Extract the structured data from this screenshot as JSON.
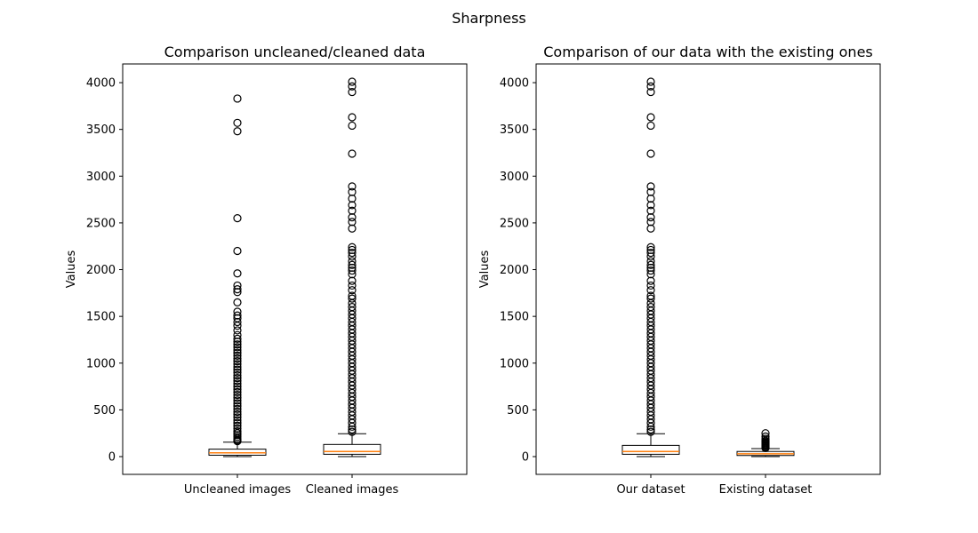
{
  "figure": {
    "suptitle": "Sharpness"
  },
  "chart_data": [
    {
      "type": "boxplot",
      "title": "Comparison uncleaned/cleaned data",
      "xlabel": "",
      "ylabel": "Values",
      "ylim": [
        -190,
        4200
      ],
      "yticks": [
        0,
        500,
        1000,
        1500,
        2000,
        2500,
        3000,
        3500,
        4000
      ],
      "grid": false,
      "colors": {
        "box": "#000000",
        "median": "#ff7f0e",
        "flier": "#000000"
      },
      "boxes": [
        {
          "label": "Uncleaned images",
          "whisker_low": 0,
          "q1": 15,
          "median": 40,
          "q3": 80,
          "whisker_high": 155,
          "fliers": [
            3830,
            3570,
            3480,
            2550,
            2200,
            1960,
            1830,
            1790,
            1760,
            1650,
            1550,
            1510,
            1480,
            1440,
            1400,
            1350,
            1300,
            1260,
            1230,
            1200,
            1170,
            1140,
            1110,
            1080,
            1050,
            1020,
            990,
            960,
            930,
            900,
            870,
            840,
            810,
            780,
            750,
            720,
            690,
            660,
            630,
            600,
            570,
            540,
            510,
            480,
            450,
            420,
            390,
            360,
            330,
            300,
            270,
            250,
            230,
            210,
            190,
            175,
            165
          ]
        },
        {
          "label": "Cleaned images",
          "whisker_low": 0,
          "q1": 25,
          "median": 55,
          "q3": 130,
          "whisker_high": 245,
          "fliers": [
            4010,
            3960,
            3900,
            3630,
            3540,
            3240,
            2890,
            2830,
            2760,
            2690,
            2630,
            2560,
            2510,
            2440,
            2240,
            2210,
            2180,
            2140,
            2090,
            2050,
            2020,
            1990,
            1950,
            1880,
            1830,
            1780,
            1720,
            1690,
            1640,
            1600,
            1560,
            1520,
            1480,
            1440,
            1400,
            1360,
            1320,
            1280,
            1240,
            1200,
            1160,
            1120,
            1080,
            1040,
            1000,
            960,
            920,
            880,
            840,
            800,
            760,
            720,
            680,
            640,
            600,
            560,
            520,
            480,
            440,
            400,
            360,
            320,
            290,
            265
          ]
        }
      ]
    },
    {
      "type": "boxplot",
      "title": "Comparison of our data with the existing ones",
      "xlabel": "",
      "ylabel": "Values",
      "ylim": [
        -190,
        4200
      ],
      "yticks": [
        0,
        500,
        1000,
        1500,
        2000,
        2500,
        3000,
        3500,
        4000
      ],
      "grid": false,
      "colors": {
        "box": "#000000",
        "median": "#ff7f0e",
        "flier": "#000000"
      },
      "boxes": [
        {
          "label": "Our dataset",
          "whisker_low": 0,
          "q1": 25,
          "median": 55,
          "q3": 120,
          "whisker_high": 245,
          "fliers": [
            4010,
            3960,
            3900,
            3630,
            3540,
            3240,
            2890,
            2830,
            2760,
            2690,
            2630,
            2560,
            2510,
            2440,
            2240,
            2210,
            2180,
            2140,
            2090,
            2050,
            2020,
            1990,
            1950,
            1880,
            1830,
            1780,
            1720,
            1690,
            1640,
            1600,
            1560,
            1520,
            1480,
            1440,
            1400,
            1360,
            1320,
            1280,
            1240,
            1200,
            1160,
            1120,
            1080,
            1040,
            1000,
            960,
            920,
            880,
            840,
            800,
            760,
            720,
            680,
            640,
            600,
            560,
            520,
            480,
            440,
            400,
            360,
            320,
            290,
            265
          ]
        },
        {
          "label": "Existing dataset",
          "whisker_low": 0,
          "q1": 12,
          "median": 30,
          "q3": 55,
          "whisker_high": 85,
          "fliers": [
            250,
            215,
            190,
            170,
            160,
            150,
            140,
            130,
            120,
            110,
            100,
            92
          ]
        }
      ]
    }
  ]
}
